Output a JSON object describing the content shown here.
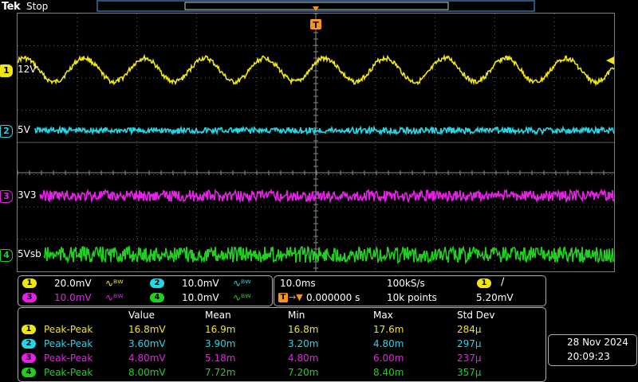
{
  "header": {
    "brand": "Tek",
    "state": "Stop",
    "trigger_marker": "T"
  },
  "colors": {
    "ch1": "#f0e614",
    "ch2": "#24d6e6",
    "ch3": "#e620e6",
    "ch4": "#20d020",
    "grid": "#7a7a7a",
    "text": "#ffffff"
  },
  "channels": [
    {
      "num": "1",
      "label": "12V",
      "color": "#f0e614"
    },
    {
      "num": "2",
      "label": "5V",
      "color": "#24d6e6"
    },
    {
      "num": "3",
      "label": "3V3",
      "color": "#e620e6"
    },
    {
      "num": "4",
      "label": "5Vsb",
      "color": "#20d020"
    }
  ],
  "scales": [
    {
      "num": "1",
      "value": "20.0mV",
      "bw": "∿ᴮᵂ"
    },
    {
      "num": "2",
      "value": "10.0mV",
      "bw": "∿ᴮᵂ"
    },
    {
      "num": "3",
      "value": "10.0mV",
      "bw": "∿ᴮᵂ"
    },
    {
      "num": "4",
      "value": "10.0mV",
      "bw": "∿ᴮᵂ"
    }
  ],
  "timebase": {
    "time_div": "10.0ms",
    "sample_rate": "100kS/s",
    "trigger_pos": "0.000000 s",
    "record_length": "10k points",
    "trigger_channel": "1",
    "trigger_slope": "∕",
    "trigger_level": "5.20mV"
  },
  "measurements": {
    "headers": [
      "Value",
      "Mean",
      "Min",
      "Max",
      "Std Dev"
    ],
    "rows": [
      {
        "num": "1",
        "name": "Peak-Peak",
        "value": "16.8mV",
        "mean": "16.9m",
        "min": "16.8m",
        "max": "17.6m",
        "std": "284μ"
      },
      {
        "num": "2",
        "name": "Peak-Peak",
        "value": "3.60mV",
        "mean": "3.90m",
        "min": "3.20m",
        "max": "4.80m",
        "std": "297μ"
      },
      {
        "num": "3",
        "name": "Peak-Peak",
        "value": "4.80mV",
        "mean": "5.18m",
        "min": "4.80m",
        "max": "6.00m",
        "std": "237μ"
      },
      {
        "num": "4",
        "name": "Peak-Peak",
        "value": "8.00mV",
        "mean": "7.72m",
        "min": "7.20m",
        "max": "8.40m",
        "std": "357μ"
      }
    ]
  },
  "datetime": {
    "date": "28 Nov 2024",
    "time": "20:09:23"
  }
}
